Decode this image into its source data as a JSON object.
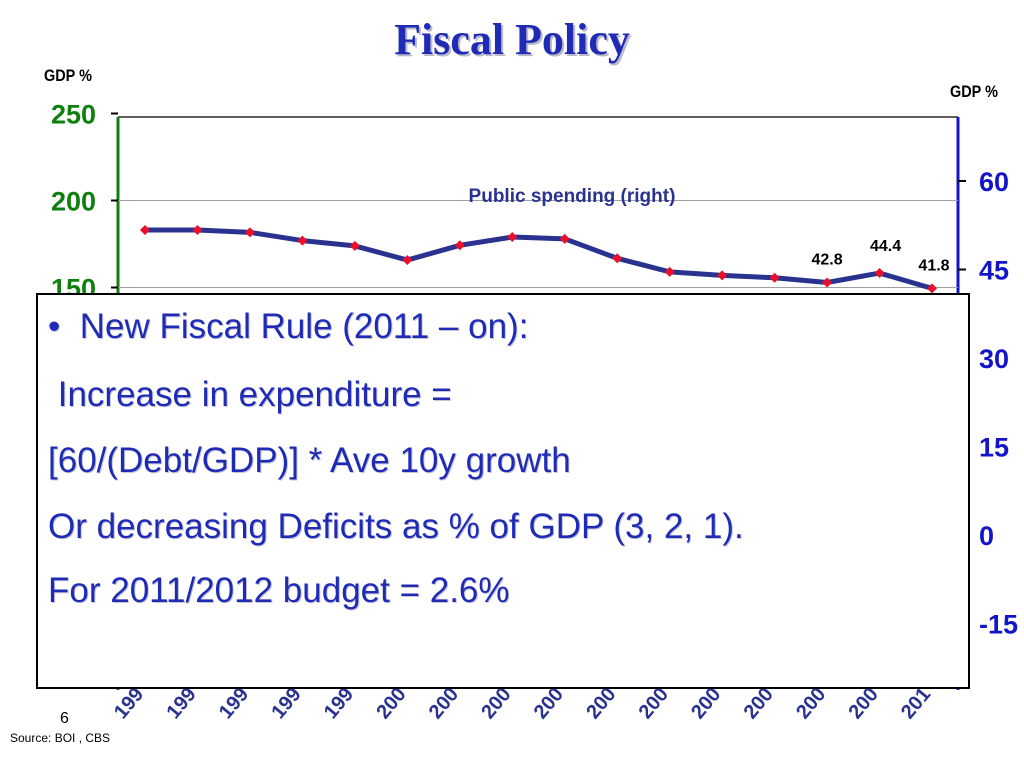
{
  "slide": {
    "title": "Fiscal Policy",
    "page_number": "6",
    "source": "Source: BOI , CBS"
  },
  "axes": {
    "left_unit": "GDP %",
    "right_unit": "GDP %"
  },
  "colors": {
    "title": "#1f2bb5",
    "left_axis": "#0f7f0f",
    "right_axis": "#1414c8",
    "series_line": "#2a3290",
    "marker": "#e8102a",
    "overlay_text": "#1f2bb5"
  },
  "chart_data": {
    "type": "line",
    "left_axis": {
      "ylim": [
        100,
        250
      ],
      "ticks": [
        "150",
        "200",
        "250"
      ]
    },
    "right_axis": {
      "ylim": [
        -15,
        70
      ],
      "ticks": [
        "-15",
        "0",
        "15",
        "30",
        "45",
        "60"
      ]
    },
    "x_tick_labels": [
      "199",
      "199",
      "199",
      "199",
      "199",
      "200",
      "200",
      "200",
      "200",
      "200",
      "200",
      "200",
      "200",
      "200",
      "200",
      "201"
    ],
    "series": [
      {
        "name": "Public spending (right)",
        "axis": "right",
        "values": [
          51.7,
          51.7,
          51.3,
          49.9,
          49.0,
          46.6,
          49.1,
          50.5,
          50.2,
          46.9,
          44.6,
          44.0,
          43.6,
          42.8,
          44.4,
          41.8
        ]
      }
    ],
    "data_labels": [
      {
        "index": 13,
        "text": "42.8"
      },
      {
        "index": 14,
        "text": "44.4"
      },
      {
        "index": 15,
        "text": "41.8"
      }
    ],
    "grid": true
  },
  "overlay": {
    "lines": [
      "•  New Fiscal Rule (2011 – on):",
      " Increase in expenditure =",
      "[60/(Debt/GDP)] * Ave 10y growth",
      "Or decreasing Deficits as % of GDP (3, 2, 1).",
      "For 2011/2012 budget = 2.6%"
    ]
  }
}
